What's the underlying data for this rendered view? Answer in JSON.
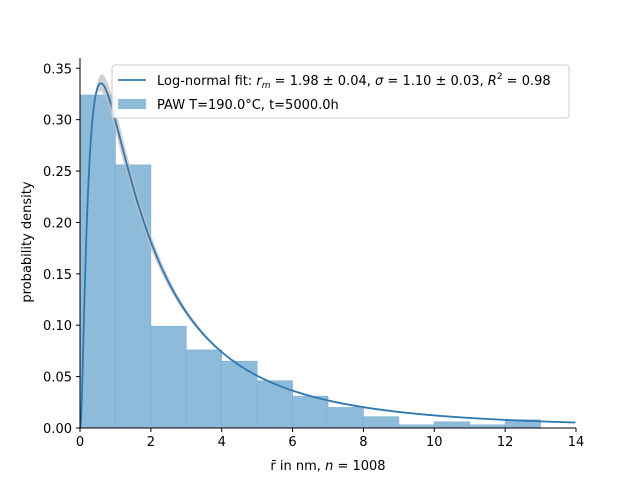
{
  "chart_data": {
    "type": "bar",
    "xlabel_base": "r̄ in nm, ",
    "xlabel_n": "n",
    "xlabel_eq": " = 1008",
    "ylabel": "probability density",
    "xlim": [
      0,
      14
    ],
    "ylim": [
      0,
      0.36
    ],
    "xticks": [
      0,
      2,
      4,
      6,
      8,
      10,
      12,
      14
    ],
    "yticks": [
      0.0,
      0.05,
      0.1,
      0.15,
      0.2,
      0.25,
      0.3,
      0.35
    ],
    "grid": false,
    "legend_position": "top-right",
    "histogram": {
      "name": "PAW T=190.0°C, t=5000.0h",
      "color": "#8fbbdb",
      "bin_edges": [
        0,
        1,
        2,
        3,
        4,
        5,
        6,
        7,
        8,
        9,
        10,
        11,
        12,
        13
      ],
      "values": [
        0.324,
        0.256,
        0.099,
        0.076,
        0.065,
        0.046,
        0.031,
        0.02,
        0.011,
        0.003,
        0.006,
        0.003,
        0.008
      ]
    },
    "fit": {
      "name_prefix": "Log-normal fit: ",
      "r_m_label": "r",
      "r_m_sub": "m",
      "r_m_value": " = 1.98 ± 0.04, ",
      "sigma_label": "σ",
      "sigma_value": " = 1.10 ± 0.03, ",
      "r2_label": "R",
      "r2_sup": "2",
      "r2_value": " = 0.98",
      "color": "#2c79b3",
      "band_color": "#bfbfbf",
      "r_m": 1.98,
      "sigma": 1.1
    }
  }
}
